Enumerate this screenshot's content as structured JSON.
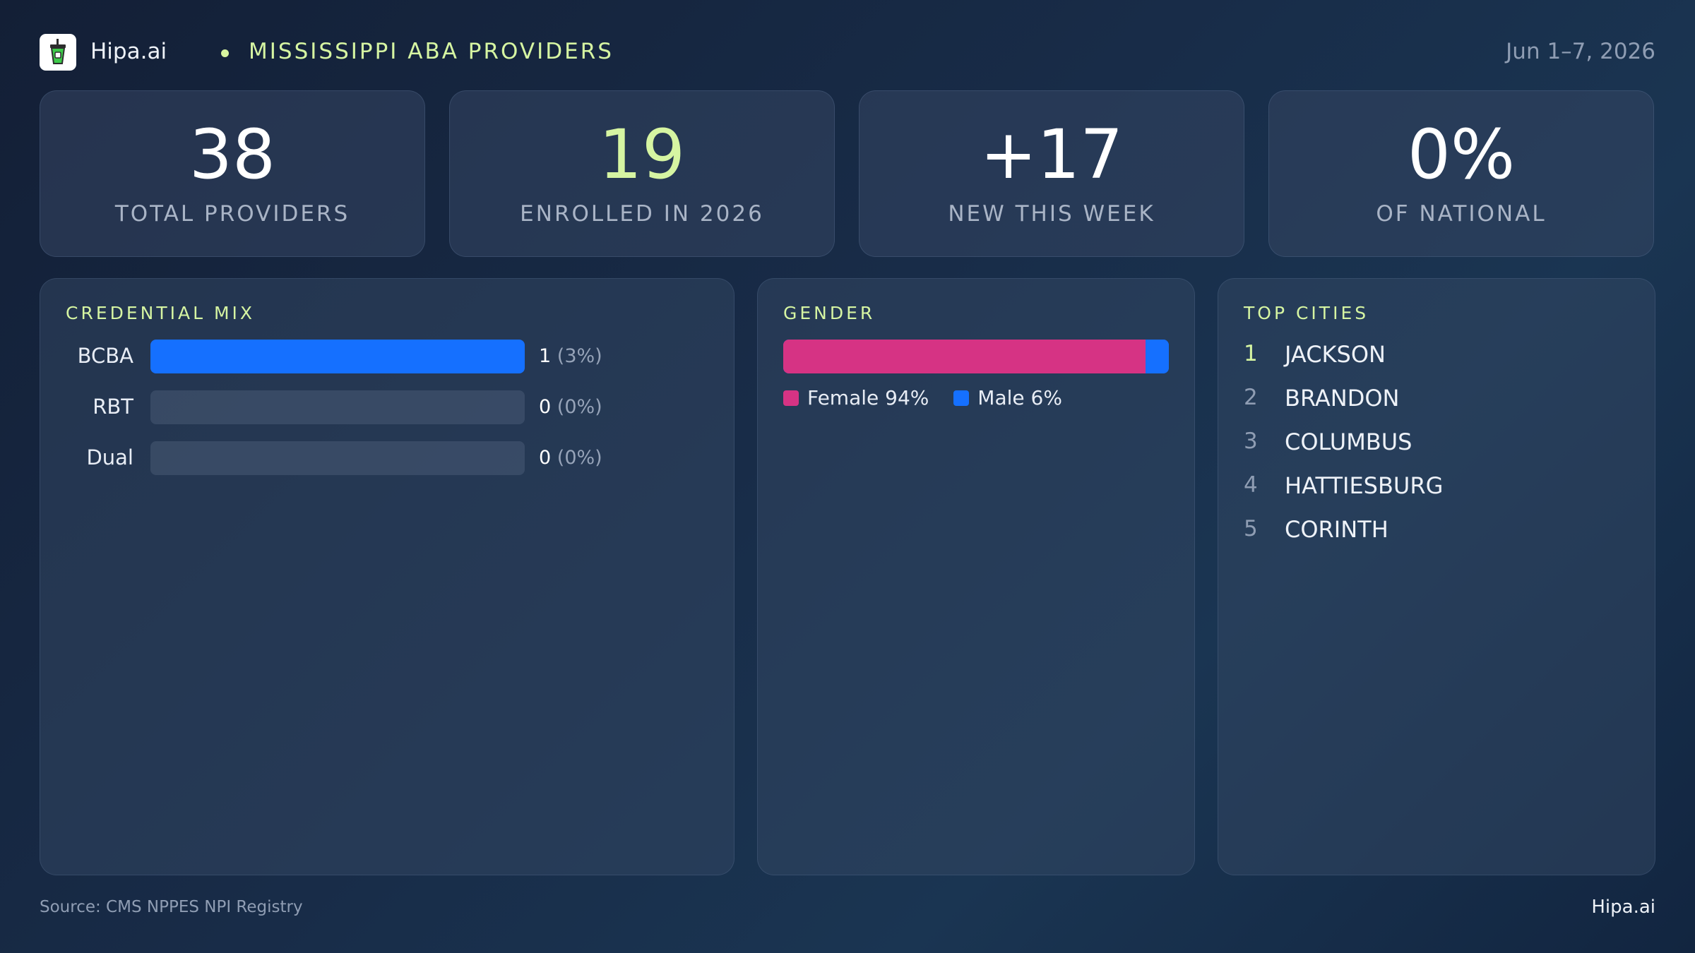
{
  "header": {
    "brand": "Hipa.ai",
    "title": "MISSISSIPPI ABA PROVIDERS",
    "date": "Jun 1–7, 2026"
  },
  "kpis": [
    {
      "value": "38",
      "label": "TOTAL PROVIDERS"
    },
    {
      "value": "19",
      "label": "ENROLLED IN 2026"
    },
    {
      "value": "+17",
      "label": "NEW THIS WEEK"
    },
    {
      "value": "0%",
      "label": "OF NATIONAL"
    }
  ],
  "credential": {
    "title": "CREDENTIAL MIX",
    "rows": [
      {
        "label": "BCBA",
        "count": "1",
        "pct": "(3%)",
        "fill": 1.0
      },
      {
        "label": "RBT",
        "count": "0",
        "pct": "(0%)",
        "fill": 0
      },
      {
        "label": "Dual",
        "count": "0",
        "pct": "(0%)",
        "fill": 0
      }
    ]
  },
  "gender": {
    "title": "GENDER",
    "female_label": "Female 94%",
    "male_label": "Male 6%",
    "female_pct": 94,
    "male_pct": 6
  },
  "cities": {
    "title": "TOP CITIES",
    "items": [
      {
        "rank": "1",
        "name": "JACKSON"
      },
      {
        "rank": "2",
        "name": "BRANDON"
      },
      {
        "rank": "3",
        "name": "COLUMBUS"
      },
      {
        "rank": "4",
        "name": "HATTIESBURG"
      },
      {
        "rank": "5",
        "name": "CORINTH"
      }
    ]
  },
  "footer": {
    "source": "Source: CMS NPPES NPI Registry",
    "brand": "Hipa.ai"
  },
  "colors": {
    "accent": "#d6f5a2",
    "blue": "#1570ff",
    "female": "#d63384"
  },
  "icons": {
    "logo": "drink-cup-logo-icon"
  }
}
